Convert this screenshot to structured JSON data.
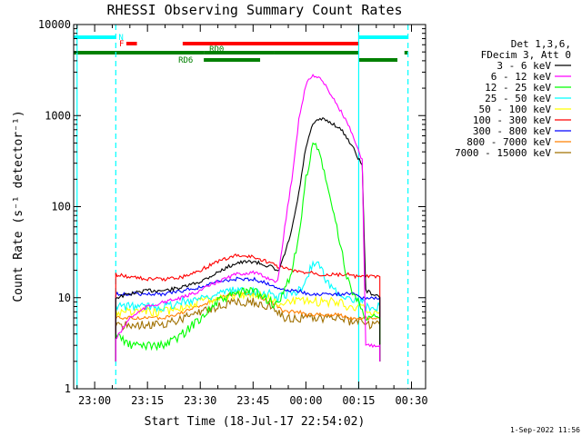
{
  "chart_data": {
    "type": "line",
    "title": "RHESSI Observing Summary Count Rates",
    "xlabel": "Start Time (18-Jul-17 22:54:02)",
    "ylabel": "Count Rate (s⁻¹ detector⁻¹)",
    "y_scale": "log",
    "ylim": [
      1,
      10000
    ],
    "y_ticks": [
      {
        "value": 1,
        "label": "1"
      },
      {
        "value": 10,
        "label": "10"
      },
      {
        "value": 100,
        "label": "100"
      },
      {
        "value": 1000,
        "label": "1000"
      },
      {
        "value": 10000,
        "label": "10000"
      }
    ],
    "xlim": [
      "22:54:02",
      "00:34:00"
    ],
    "x_ticks": [
      {
        "value": "23:00",
        "label": "23:00"
      },
      {
        "value": "23:15",
        "label": "23:15"
      },
      {
        "value": "23:30",
        "label": "23:30"
      },
      {
        "value": "23:45",
        "label": "23:45"
      },
      {
        "value": "00:00",
        "label": "00:00"
      },
      {
        "value": "00:15",
        "label": "00:15"
      },
      {
        "value": "00:30",
        "label": "00:30"
      }
    ],
    "legend": {
      "placement": "top-right",
      "header": [
        "Det 1,3,6,",
        "FDecim 3, Att 0"
      ]
    },
    "series": [
      {
        "name": "3 - 6 keV",
        "color": "#000000",
        "x": [
          "23:06",
          "23:10",
          "23:15",
          "23:20",
          "23:25",
          "23:30",
          "23:35",
          "23:40",
          "23:45",
          "23:50",
          "23:52",
          "23:54",
          "23:56",
          "23:58",
          "00:00",
          "00:02",
          "00:04",
          "00:06",
          "00:08",
          "00:10",
          "00:12",
          "00:14",
          "00:16",
          "00:17",
          "00:19",
          "00:21"
        ],
        "y": [
          10,
          11,
          12,
          12,
          13,
          15,
          19,
          24,
          25,
          22,
          19,
          30,
          55,
          140,
          450,
          800,
          920,
          880,
          800,
          700,
          550,
          400,
          280,
          12,
          11,
          10
        ]
      },
      {
        "name": "6 - 12 keV",
        "color": "#ff00ff",
        "x": [
          "23:06",
          "23:10",
          "23:15",
          "23:20",
          "23:25",
          "23:30",
          "23:35",
          "23:40",
          "23:45",
          "23:50",
          "23:52",
          "23:54",
          "23:56",
          "23:58",
          "00:00",
          "00:02",
          "00:04",
          "00:06",
          "00:08",
          "00:10",
          "00:12",
          "00:14",
          "00:16",
          "00:17",
          "00:19",
          "00:21"
        ],
        "y": [
          3.5,
          6,
          8,
          9,
          10,
          12,
          15,
          18,
          19,
          16,
          15,
          60,
          200,
          900,
          2200,
          2800,
          2600,
          2000,
          1500,
          1100,
          800,
          500,
          320,
          3,
          3,
          3
        ]
      },
      {
        "name": "12 - 25 keV",
        "color": "#00ff00",
        "x": [
          "23:06",
          "23:10",
          "23:15",
          "23:20",
          "23:25",
          "23:30",
          "23:35",
          "23:40",
          "23:45",
          "23:50",
          "23:52",
          "23:54",
          "23:56",
          "23:58",
          "00:00",
          "00:02",
          "00:04",
          "00:06",
          "00:08",
          "00:10",
          "00:12",
          "00:14",
          "00:16",
          "00:17",
          "00:19",
          "00:21"
        ],
        "y": [
          4,
          3,
          3,
          3,
          4,
          6,
          9,
          11,
          12,
          9,
          8,
          12,
          20,
          45,
          200,
          500,
          380,
          170,
          80,
          35,
          15,
          10,
          8,
          6,
          6,
          6
        ]
      },
      {
        "name": "25 - 50 keV",
        "color": "#00ffff",
        "x": [
          "23:06",
          "23:10",
          "23:15",
          "23:20",
          "23:25",
          "23:30",
          "23:35",
          "23:40",
          "23:45",
          "23:50",
          "23:52",
          "23:54",
          "23:56",
          "23:58",
          "00:00",
          "00:02",
          "00:04",
          "00:06",
          "00:08",
          "00:10",
          "00:12",
          "00:14",
          "00:16",
          "00:17",
          "00:19",
          "00:21"
        ],
        "y": [
          8,
          8,
          8,
          8,
          9,
          10,
          11,
          12,
          12,
          11,
          10,
          11,
          11,
          12,
          15,
          25,
          22,
          15,
          12,
          11,
          10,
          9,
          9,
          8,
          8,
          8
        ]
      },
      {
        "name": "50 - 100 keV",
        "color": "#ffff00",
        "x": [
          "23:06",
          "23:10",
          "23:15",
          "23:20",
          "23:25",
          "23:30",
          "23:35",
          "23:40",
          "23:45",
          "23:50",
          "23:52",
          "23:54",
          "23:56",
          "23:58",
          "00:00",
          "00:02",
          "00:04",
          "00:06",
          "00:08",
          "00:10",
          "00:12",
          "00:14",
          "00:16",
          "00:17",
          "00:19",
          "00:21"
        ],
        "y": [
          7,
          7,
          7,
          7,
          8,
          9,
          10,
          11,
          11,
          10,
          9,
          9,
          9,
          9,
          9,
          9,
          9,
          9,
          9,
          9,
          8,
          8,
          8,
          7,
          7,
          7
        ]
      },
      {
        "name": "100 - 300 keV",
        "color": "#ff0000",
        "x": [
          "23:06",
          "23:10",
          "23:15",
          "23:20",
          "23:25",
          "23:30",
          "23:35",
          "23:40",
          "23:45",
          "23:50",
          "23:52",
          "23:54",
          "23:56",
          "23:58",
          "00:00",
          "00:02",
          "00:04",
          "00:06",
          "00:08",
          "00:10",
          "00:12",
          "00:14",
          "00:16",
          "00:17",
          "00:19",
          "00:21"
        ],
        "y": [
          18,
          17,
          16,
          16,
          17,
          20,
          25,
          29,
          28,
          24,
          22,
          21,
          20,
          19,
          19,
          19,
          18,
          18,
          18,
          18,
          18,
          17,
          17,
          17,
          17,
          17
        ]
      },
      {
        "name": "300 - 800 keV",
        "color": "#0000ff",
        "x": [
          "23:06",
          "23:10",
          "23:15",
          "23:20",
          "23:25",
          "23:30",
          "23:35",
          "23:40",
          "23:45",
          "23:50",
          "23:52",
          "23:54",
          "23:56",
          "23:58",
          "00:00",
          "00:02",
          "00:04",
          "00:06",
          "00:08",
          "00:10",
          "00:12",
          "00:14",
          "00:16",
          "00:17",
          "00:19",
          "00:21"
        ],
        "y": [
          11,
          11,
          11,
          11,
          12,
          13,
          15,
          16,
          16,
          14,
          13,
          12,
          12,
          12,
          11,
          11,
          11,
          11,
          11,
          11,
          11,
          11,
          10,
          10,
          10,
          10
        ]
      },
      {
        "name": "800 - 7000 keV",
        "color": "#ff8000",
        "x": [
          "23:06",
          "23:10",
          "23:15",
          "23:20",
          "23:25",
          "23:30",
          "23:35",
          "23:40",
          "23:45",
          "23:50",
          "23:52",
          "23:54",
          "23:56",
          "23:58",
          "00:00",
          "00:02",
          "00:04",
          "00:06",
          "00:08",
          "00:10",
          "00:12",
          "00:14",
          "00:16",
          "00:17",
          "00:19",
          "00:21"
        ],
        "y": [
          6,
          6,
          6,
          6,
          7,
          8,
          10,
          11,
          11,
          9,
          8,
          7,
          7,
          7,
          6.5,
          6.5,
          6.5,
          6.5,
          6.5,
          6.5,
          6,
          6,
          6,
          6,
          6,
          6
        ]
      },
      {
        "name": "7000 - 15000 keV",
        "color": "#a07000",
        "x": [
          "23:06",
          "23:10",
          "23:15",
          "23:20",
          "23:25",
          "23:30",
          "23:35",
          "23:40",
          "23:45",
          "23:50",
          "23:52",
          "23:54",
          "23:56",
          "23:58",
          "00:00",
          "00:02",
          "00:04",
          "00:06",
          "00:08",
          "00:10",
          "00:12",
          "00:14",
          "00:16",
          "00:17",
          "00:19",
          "00:21"
        ],
        "y": [
          5,
          5,
          5,
          5,
          6,
          7,
          8,
          9,
          9,
          8,
          7,
          6,
          6,
          6,
          6,
          6,
          6,
          6,
          6,
          6,
          5.5,
          5.5,
          5.5,
          5,
          5,
          5
        ]
      }
    ],
    "flag_bars": [
      {
        "label": "N",
        "color": "#00ffff",
        "start": "22:54",
        "end": "23:06"
      },
      {
        "label": "",
        "color": "#00ffff",
        "start": "00:15",
        "end": "00:29"
      },
      {
        "label": "F",
        "color": "#ff0000",
        "start": "23:09",
        "end": "23:12"
      },
      {
        "label": "",
        "color": "#ff0000",
        "start": "23:25",
        "end": "00:15"
      },
      {
        "label": "",
        "color": "#008000",
        "start": "22:54",
        "end": "23:31"
      },
      {
        "label": "RD0",
        "color": "#008000",
        "start": "23:31",
        "end": "23:51"
      },
      {
        "label": "",
        "color": "#008000",
        "start": "23:51",
        "end": "00:15"
      },
      {
        "label": "",
        "color": "#008000",
        "start": "00:28",
        "end": "00:29"
      },
      {
        "label": "RD6",
        "color": "#008000",
        "start": "23:31",
        "end": "23:47"
      },
      {
        "label": "",
        "color": "#008000",
        "start": "00:15",
        "end": "00:26"
      }
    ],
    "vertical_markers": [
      {
        "time": "22:55",
        "color": "#00ffff",
        "style": "solid"
      },
      {
        "time": "23:06",
        "color": "#00ffff",
        "style": "dashed"
      },
      {
        "time": "00:15",
        "color": "#00ffff",
        "style": "solid"
      },
      {
        "time": "00:29",
        "color": "#00ffff",
        "style": "dashed"
      }
    ],
    "footer": "1-Sep-2022 11:56"
  }
}
